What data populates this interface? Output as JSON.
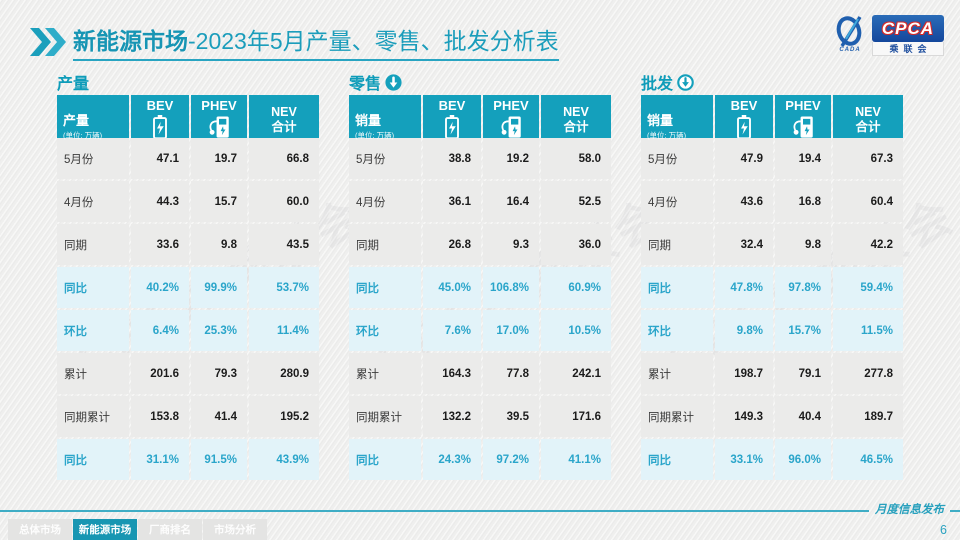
{
  "title": {
    "bold": "新能源市场",
    "rest": "-2023年5月产量、零售、批发分析表"
  },
  "logo": {
    "cpca": "CPCA",
    "sub": "乘联会",
    "cada": "CADA"
  },
  "watermark": "CPCA 乘联会",
  "tables": [
    {
      "section": "产量",
      "arrow": "none",
      "rowhead": "产量",
      "unit": "(单位: 万辆)",
      "col_bev": "BEV",
      "col_phev": "PHEV",
      "col_nev_1": "NEV",
      "col_nev_2": "合计",
      "rows": [
        {
          "label": "5月份",
          "v": [
            "47.1",
            "19.7",
            "66.8"
          ],
          "hl": false
        },
        {
          "label": "4月份",
          "v": [
            "44.3",
            "15.7",
            "60.0"
          ],
          "hl": false
        },
        {
          "label": "同期",
          "v": [
            "33.6",
            "9.8",
            "43.5"
          ],
          "hl": false
        },
        {
          "label": "同比",
          "v": [
            "40.2%",
            "99.9%",
            "53.7%"
          ],
          "hl": true
        },
        {
          "label": "环比",
          "v": [
            "6.4%",
            "25.3%",
            "11.4%"
          ],
          "hl": true
        },
        {
          "label": "累计",
          "v": [
            "201.6",
            "79.3",
            "280.9"
          ],
          "hl": false
        },
        {
          "label": "同期累计",
          "v": [
            "153.8",
            "41.4",
            "195.2"
          ],
          "hl": false
        },
        {
          "label": "同比",
          "v": [
            "31.1%",
            "91.5%",
            "43.9%"
          ],
          "hl": true
        }
      ]
    },
    {
      "section": "零售",
      "arrow": "filled",
      "rowhead": "销量",
      "unit": "(单位: 万辆)",
      "col_bev": "BEV",
      "col_phev": "PHEV",
      "col_nev_1": "NEV",
      "col_nev_2": "合计",
      "rows": [
        {
          "label": "5月份",
          "v": [
            "38.8",
            "19.2",
            "58.0"
          ],
          "hl": false
        },
        {
          "label": "4月份",
          "v": [
            "36.1",
            "16.4",
            "52.5"
          ],
          "hl": false
        },
        {
          "label": "同期",
          "v": [
            "26.8",
            "9.3",
            "36.0"
          ],
          "hl": false
        },
        {
          "label": "同比",
          "v": [
            "45.0%",
            "106.8%",
            "60.9%"
          ],
          "hl": true
        },
        {
          "label": "环比",
          "v": [
            "7.6%",
            "17.0%",
            "10.5%"
          ],
          "hl": true
        },
        {
          "label": "累计",
          "v": [
            "164.3",
            "77.8",
            "242.1"
          ],
          "hl": false
        },
        {
          "label": "同期累计",
          "v": [
            "132.2",
            "39.5",
            "171.6"
          ],
          "hl": false
        },
        {
          "label": "同比",
          "v": [
            "24.3%",
            "97.2%",
            "41.1%"
          ],
          "hl": true
        }
      ]
    },
    {
      "section": "批发",
      "arrow": "outline",
      "rowhead": "销量",
      "unit": "(单位: 万辆)",
      "col_bev": "BEV",
      "col_phev": "PHEV",
      "col_nev_1": "NEV",
      "col_nev_2": "合计",
      "rows": [
        {
          "label": "5月份",
          "v": [
            "47.9",
            "19.4",
            "67.3"
          ],
          "hl": false
        },
        {
          "label": "4月份",
          "v": [
            "43.6",
            "16.8",
            "60.4"
          ],
          "hl": false
        },
        {
          "label": "同期",
          "v": [
            "32.4",
            "9.8",
            "42.2"
          ],
          "hl": false
        },
        {
          "label": "同比",
          "v": [
            "47.8%",
            "97.8%",
            "59.4%"
          ],
          "hl": true
        },
        {
          "label": "环比",
          "v": [
            "9.8%",
            "15.7%",
            "11.5%"
          ],
          "hl": true
        },
        {
          "label": "累计",
          "v": [
            "198.7",
            "79.1",
            "277.8"
          ],
          "hl": false
        },
        {
          "label": "同期累计",
          "v": [
            "149.3",
            "40.4",
            "189.7"
          ],
          "hl": false
        },
        {
          "label": "同比",
          "v": [
            "33.1%",
            "96.0%",
            "46.5%"
          ],
          "hl": true
        }
      ]
    }
  ],
  "nav": {
    "tabs": [
      {
        "label": "总体市场",
        "active": false
      },
      {
        "label": "新能源市场",
        "active": true
      },
      {
        "label": "厂商排名",
        "active": false
      },
      {
        "label": "市场分析",
        "active": false
      }
    ]
  },
  "footer": {
    "label": "月度信息发布",
    "page": "6"
  },
  "colors": {
    "teal_header": "#14a0bc",
    "teal_title": "#1b9dbb",
    "row_gray": "#ebebea",
    "row_blue": "#e2f3f9",
    "percent_text": "#2aa5ca",
    "logo_blue": "#14479c",
    "logo_red": "#d22a2a"
  }
}
